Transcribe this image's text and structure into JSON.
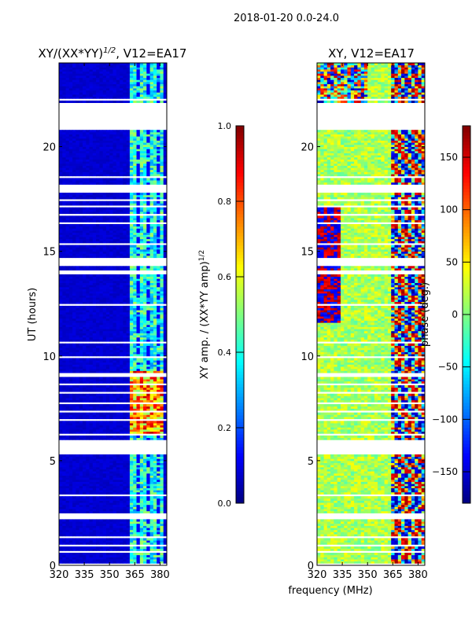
{
  "chart_data": {
    "type": "heatmap",
    "suptitle": "2018-01-20 0.0-24.0",
    "xlabel": "frequency (MHz)",
    "panels": [
      {
        "title": "XY/(XX*YY)",
        "title_sup": "1/2",
        "title_suffix": ", V12=EA17",
        "ylabel": "UT (hours)",
        "xlim": [
          320,
          384
        ],
        "ylim": [
          0,
          24
        ],
        "xticks": [
          "320",
          "335",
          "350",
          "365",
          "380"
        ],
        "xtick_values": [
          320,
          335,
          350,
          365,
          380
        ],
        "yticks": [
          "0",
          "5",
          "10",
          "15",
          "20"
        ],
        "ytick_values": [
          0,
          5,
          10,
          15,
          20
        ],
        "colormap": "jet",
        "colorbar": {
          "label": "XY amp. / (XX*YY amp)",
          "label_sup": "1/2",
          "range": [
            0,
            1
          ],
          "ticks": [
            "0.0",
            "0.2",
            "0.4",
            "0.6",
            "0.8",
            "1.0"
          ],
          "tick_values": [
            0,
            0.2,
            0.4,
            0.6,
            0.8,
            1.0
          ]
        },
        "background_value": 0.06,
        "active_band_mhz": [
          362,
          381
        ],
        "active_band_value": 0.42,
        "rfi_interval_hours": [
          6.2,
          9.2
        ],
        "rfi_value": 0.8
      },
      {
        "title": "XY, V12=EA17",
        "xlim": [
          320,
          384
        ],
        "ylim": [
          0,
          24
        ],
        "xticks": [
          "320",
          "335",
          "350",
          "365",
          "380"
        ],
        "xtick_values": [
          320,
          335,
          350,
          365,
          380
        ],
        "yticks": [
          "0",
          "5",
          "10",
          "15",
          "20"
        ],
        "ytick_values": [
          0,
          5,
          10,
          15,
          20
        ],
        "colormap": "jet",
        "colorbar": {
          "label": "phase (deg.)",
          "range": [
            -180,
            180
          ],
          "ticks": [
            "−150",
            "−100",
            "−50",
            "0",
            "50",
            "100",
            "150"
          ],
          "tick_values": [
            -150,
            -100,
            -50,
            0,
            50,
            100,
            150
          ]
        },
        "background_value": 15,
        "active_band_mhz": [
          363,
          384
        ]
      }
    ],
    "flagged_hours": [
      [
        0.05,
        0.1
      ],
      [
        0.6,
        0.7
      ],
      [
        0.95,
        1.0
      ],
      [
        1.3,
        1.38
      ],
      [
        2.2,
        2.5
      ],
      [
        3.0,
        3.05
      ],
      [
        3.3,
        3.4
      ],
      [
        4.5,
        4.55
      ],
      [
        5.3,
        6.0
      ],
      [
        6.2,
        6.28
      ],
      [
        6.55,
        6.6
      ],
      [
        6.9,
        7.0
      ],
      [
        7.3,
        7.35
      ],
      [
        7.7,
        7.8
      ],
      [
        8.2,
        8.25
      ],
      [
        8.6,
        8.7
      ],
      [
        8.95,
        9.2
      ],
      [
        9.9,
        9.95
      ],
      [
        10.6,
        10.65
      ],
      [
        12.4,
        12.45
      ],
      [
        13.9,
        14.1
      ],
      [
        14.3,
        14.7
      ],
      [
        15.3,
        15.35
      ],
      [
        16.3,
        16.35
      ],
      [
        16.7,
        16.8
      ],
      [
        17.1,
        17.2
      ],
      [
        17.4,
        17.5
      ],
      [
        17.8,
        18.2
      ],
      [
        18.5,
        18.6
      ],
      [
        19.3,
        19.35
      ],
      [
        20.8,
        22.1
      ],
      [
        22.25,
        22.35
      ],
      [
        22.6,
        22.65
      ],
      [
        23.5,
        23.55
      ]
    ]
  }
}
